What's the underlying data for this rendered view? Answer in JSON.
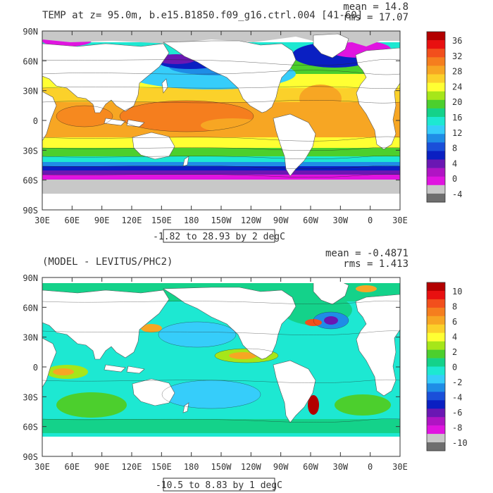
{
  "panels": [
    {
      "title": "TEMP at z=  95.0m, b.e15.B1850.f09_g16.ctrl.004 [41-60]",
      "mean_label": "mean = 14.8",
      "rms_label": "rms = 17.07",
      "range_label": "-1.82 to 28.93 by 2 degC",
      "colorbar": {
        "labels": [
          "36",
          "32",
          "28",
          "24",
          "20",
          "16",
          "12",
          "8",
          "4",
          "0",
          "-4"
        ],
        "colors": [
          "#b30000",
          "#e81010",
          "#f24f1c",
          "#f57e1e",
          "#f7a623",
          "#fbd12a",
          "#ffff33",
          "#a6e619",
          "#4ccf2d",
          "#14d28a",
          "#1de8d2",
          "#36cdfa",
          "#1f8de6",
          "#1a4fd9",
          "#0a1fc2",
          "#6a17b3",
          "#b014c4",
          "#e014e0",
          "#c8c8c8",
          "#6e6e6e"
        ]
      }
    },
    {
      "title": "(MODEL - LEVITUS/PHC2)",
      "mean_label": "mean = -0.4871",
      "rms_label": "rms = 1.413",
      "range_label": "-10.5 to 8.83 by 1 degC",
      "colorbar": {
        "labels": [
          "10",
          "8",
          "6",
          "4",
          "2",
          "0",
          "-2",
          "-4",
          "-6",
          "-8",
          "-10"
        ],
        "colors": [
          "#b30000",
          "#e81010",
          "#f24f1c",
          "#f57e1e",
          "#f7a623",
          "#fbd12a",
          "#ffff33",
          "#a6e619",
          "#4ccf2d",
          "#14d28a",
          "#1de8d2",
          "#36cdfa",
          "#1f8de6",
          "#1a4fd9",
          "#0a1fc2",
          "#6a17b3",
          "#b014c4",
          "#e014e0",
          "#c8c8c8",
          "#6e6e6e"
        ]
      }
    }
  ],
  "axes": {
    "lat_labels": [
      "90N",
      "60N",
      "30N",
      "0",
      "30S",
      "60S",
      "90S"
    ],
    "lon_labels": [
      "30E",
      "60E",
      "90E",
      "120E",
      "150E",
      "180",
      "150W",
      "120W",
      "90W",
      "60W",
      "30W",
      "0",
      "30E"
    ]
  },
  "colors": {
    "land": "#ffffff",
    "ice": "#c8c8c8",
    "frame": "#333333"
  }
}
